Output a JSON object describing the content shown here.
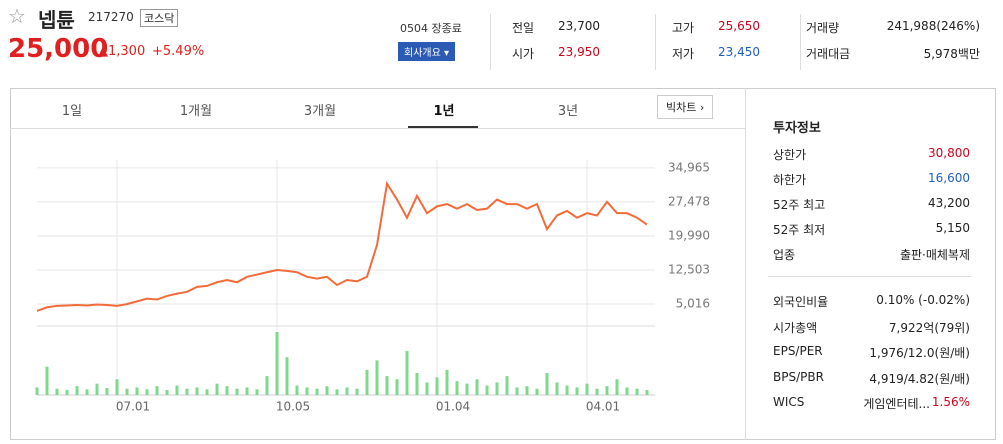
{
  "header": {
    "name": "넵튠",
    "code": "217270",
    "market": "코스닥",
    "price": "25,000",
    "change": "1,300",
    "change_pct": "+5.49%",
    "time": "0504 장종료",
    "company_button": "회사개요"
  },
  "stats": [
    [
      {
        "label": "전일",
        "value": "23,700"
      },
      {
        "label": "고가",
        "value": "25,650"
      },
      {
        "label": "거래량",
        "value": "241,988(246%)"
      }
    ],
    [
      {
        "label": "시가",
        "value": "23,950"
      },
      {
        "label": "저가",
        "value": "23,450"
      },
      {
        "label": "거래대금",
        "value": "5,978백만"
      }
    ]
  ],
  "tabs": [
    "1일",
    "1개월",
    "3개월",
    "1년",
    "3년"
  ],
  "chart_button": "빅차트",
  "chart_data": {
    "type": "line",
    "color": "#f26b3a",
    "volume_color": "#7fd98c",
    "categories": [
      null,
      null,
      null,
      null,
      null,
      null,
      null,
      null,
      "07.01",
      null,
      null,
      null,
      null,
      null,
      null,
      null,
      null,
      null,
      null,
      null,
      null,
      null,
      null,
      null,
      "10.05",
      null,
      null,
      null,
      null,
      null,
      null,
      null,
      null,
      null,
      null,
      null,
      null,
      null,
      null,
      null,
      "01.04",
      null,
      null,
      null,
      null,
      null,
      null,
      null,
      null,
      null,
      null,
      null,
      null,
      null,
      null,
      "04.01",
      null,
      null,
      null,
      null,
      null,
      null
    ],
    "values": [
      3500,
      4300,
      4600,
      4700,
      4800,
      4700,
      4900,
      4800,
      4600,
      5000,
      5600,
      6200,
      6000,
      6800,
      7300,
      7700,
      8800,
      9000,
      9800,
      10300,
      9800,
      11000,
      11500,
      12000,
      12500,
      12300,
      12000,
      11000,
      10600,
      11000,
      9200,
      10300,
      10000,
      11000,
      18000,
      31500,
      28000,
      24000,
      28800,
      25000,
      26500,
      27000,
      26000,
      27000,
      25700,
      26000,
      28000,
      27000,
      27000,
      26000,
      27000,
      21500,
      24500,
      25500,
      24000,
      25000,
      24500,
      27500,
      25000,
      25000,
      24000,
      22500
    ],
    "volume": [
      12,
      45,
      10,
      8,
      14,
      9,
      18,
      11,
      25,
      10,
      12,
      9,
      14,
      8,
      15,
      10,
      12,
      9,
      18,
      14,
      10,
      12,
      9,
      30,
      100,
      60,
      15,
      12,
      10,
      14,
      9,
      12,
      10,
      40,
      55,
      30,
      25,
      70,
      35,
      20,
      28,
      40,
      22,
      18,
      25,
      15,
      20,
      30,
      12,
      14,
      10,
      35,
      20,
      15,
      12,
      18,
      10,
      14,
      25,
      12,
      10,
      8
    ],
    "ylim": [
      1500,
      36700
    ],
    "yticks": [
      {
        "value": 34965,
        "label": "34,965"
      },
      {
        "value": 27478,
        "label": "27,478"
      },
      {
        "value": 19990,
        "label": "19,990"
      },
      {
        "value": 12503,
        "label": "12,503"
      },
      {
        "value": 5016,
        "label": "5,016"
      }
    ],
    "grid": true
  },
  "invest_info": {
    "title": "투자정보",
    "rows": [
      {
        "label": "상한가",
        "value": "30,800"
      },
      {
        "label": "하한가",
        "value": "16,600"
      },
      {
        "label": "52주 최고",
        "value": "43,200"
      },
      {
        "label": "52주 최저",
        "value": "5,150"
      },
      {
        "label": "업종",
        "value": "출판·매체복제"
      },
      {
        "label": "외국인비율",
        "value": "0.10% (-0.02%)"
      },
      {
        "label": "시가총액",
        "value": "7,922억(79위)"
      },
      {
        "label": "EPS/PER",
        "value": "1,976/12.0(원/배)"
      },
      {
        "label": "BPS/PBR",
        "value": "4,919/4.82(원/배)"
      },
      {
        "label": "WICS",
        "value": "게임엔터테...",
        "extra": "1.56%"
      }
    ]
  }
}
